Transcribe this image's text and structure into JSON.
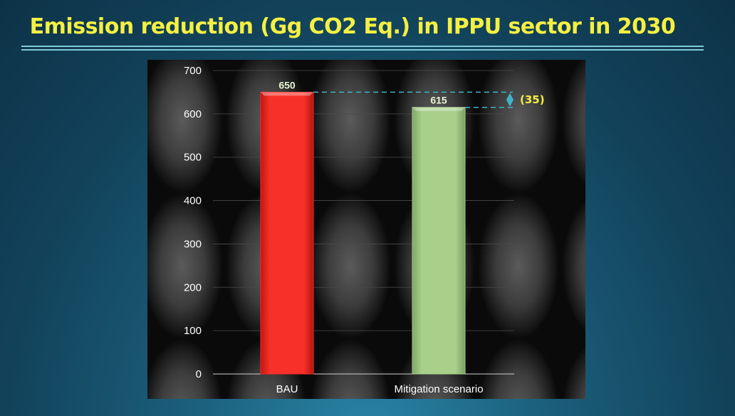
{
  "slide": {
    "title": "Emission reduction (Gg CO2 Eq.) in IPPU sector in 2030"
  },
  "chart_data": {
    "type": "bar",
    "title": "Emission reduction (Gg CO2 Eq.) in IPPU sector in 2030",
    "categories": [
      "BAU",
      "Mitigation scenario"
    ],
    "values": [
      650,
      615
    ],
    "data_labels": [
      "650",
      "615"
    ],
    "bar_colors": [
      "#f52a24",
      "#a3cc86"
    ],
    "ylim": [
      0,
      700
    ],
    "yticks": [
      0,
      100,
      200,
      300,
      400,
      500,
      600,
      700
    ],
    "ytick_labels": [
      "0",
      "100",
      "200",
      "300",
      "400",
      "500",
      "600",
      "700"
    ],
    "grid": true,
    "legend": "none",
    "annotation": {
      "label": "(35)",
      "from_value": 650,
      "to_value": 615,
      "color": "#3fb3c9"
    }
  },
  "colors": {
    "title": "#f4f042",
    "axis_text": "#ffffff",
    "data_label_text": "#e8f5d0",
    "annotation_text": "#f4f042"
  }
}
